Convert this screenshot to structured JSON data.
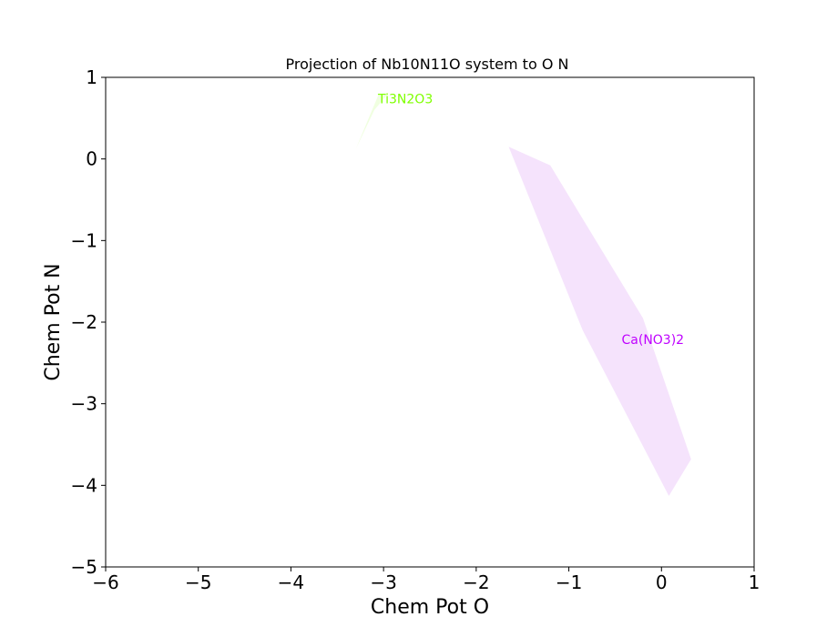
{
  "chart_data": {
    "type": "area",
    "title": "Projection of Nb10N11O system to O N",
    "xlabel": "Chem Pot O",
    "ylabel": "Chem Pot N",
    "xlim": [
      -6,
      1
    ],
    "ylim": [
      -5,
      1
    ],
    "xticks": [
      -6,
      -5,
      -4,
      -3,
      -2,
      -1,
      0,
      1
    ],
    "yticks": [
      -5,
      -4,
      -3,
      -2,
      -1,
      0,
      1
    ],
    "xtick_labels": [
      "−6",
      "−5",
      "−4",
      "−3",
      "−2",
      "−1",
      "0",
      "1"
    ],
    "ytick_labels": [
      "−5",
      "−4",
      "−3",
      "−2",
      "−1",
      "0",
      "1"
    ],
    "grid": false,
    "regions": [
      {
        "name": "Ti3N2O3",
        "fill_color": "#f0ffe0",
        "label_color": "#7fff00",
        "label_at": [
          -3.06,
          0.68
        ],
        "polygon": [
          [
            -3.3,
            0.12
          ],
          [
            -3.05,
            0.8
          ],
          [
            -2.95,
            0.8
          ],
          [
            -3.1,
            0.6
          ]
        ]
      },
      {
        "name": "Ca(NO3)2",
        "fill_color": "#f5e3fc",
        "label_color": "#bf00ff",
        "label_at": [
          -0.43,
          -2.27
        ],
        "polygon": [
          [
            -1.65,
            0.15
          ],
          [
            -1.2,
            -0.08
          ],
          [
            -0.2,
            -1.95
          ],
          [
            0.32,
            -3.68
          ],
          [
            0.08,
            -4.13
          ],
          [
            -0.85,
            -2.1
          ]
        ]
      }
    ]
  }
}
